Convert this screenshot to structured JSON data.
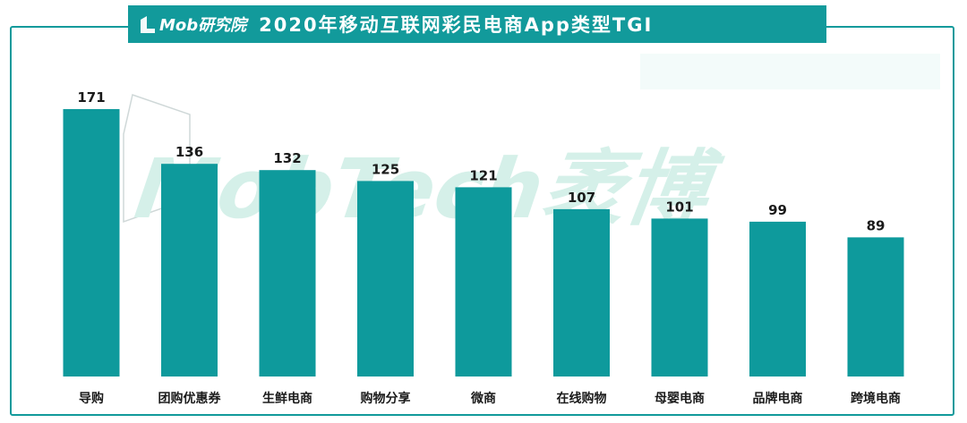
{
  "header": {
    "logo_text": "Mob研究院",
    "title": "2020年移动互联网彩民电商App类型TGI"
  },
  "watermark": {
    "text": "MobTech袤博"
  },
  "colors": {
    "accent": "#129a9b",
    "bar": "#0e9a9c",
    "watermark": "#d5f0e9"
  },
  "icons": {
    "logo": "mob-logo-icon"
  },
  "chart_data": {
    "type": "bar",
    "title": "2020年移动互联网彩民电商App类型TGI",
    "categories": [
      "导购",
      "团购优惠券",
      "生鲜电商",
      "购物分享",
      "微商",
      "在线购物",
      "母婴电商",
      "品牌电商",
      "跨境电商"
    ],
    "values": [
      171,
      136,
      132,
      125,
      121,
      107,
      101,
      99,
      89
    ],
    "ylim": [
      0,
      171
    ],
    "grid": false,
    "legend": "none",
    "data_labels": true
  }
}
